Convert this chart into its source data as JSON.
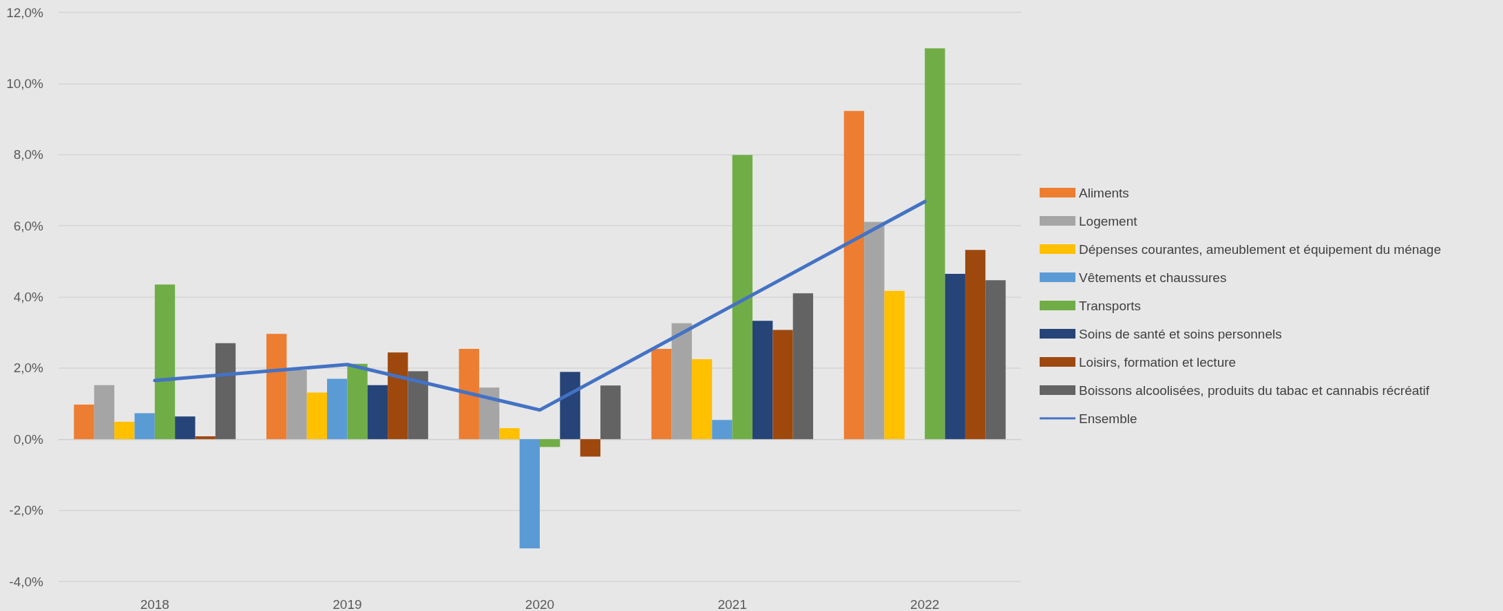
{
  "chart_data": {
    "type": "bar",
    "categories": [
      "2018",
      "2019",
      "2020",
      "2021",
      "2022"
    ],
    "series": [
      {
        "name": "Aliments",
        "color": "#ed7d31",
        "values": [
          0.97,
          2.96,
          2.54,
          2.54,
          9.23
        ]
      },
      {
        "name": "Logement",
        "color": "#a5a5a5",
        "values": [
          1.52,
          1.94,
          1.45,
          3.26,
          6.11
        ]
      },
      {
        "name": "Dépenses courantes, ameublement et équipement du ménage",
        "color": "#ffc000",
        "values": [
          0.49,
          1.31,
          0.31,
          2.25,
          4.17
        ]
      },
      {
        "name": "Vêtements et chaussures",
        "color": "#5b9bd5",
        "values": [
          0.73,
          1.7,
          -3.07,
          0.54,
          null
        ]
      },
      {
        "name": "Transports",
        "color": "#70ad47",
        "values": [
          4.35,
          2.12,
          -0.22,
          7.99,
          10.99
        ]
      },
      {
        "name": "Soins de santé et soins personnels",
        "color": "#264478",
        "values": [
          0.64,
          1.52,
          1.89,
          3.33,
          4.65
        ]
      },
      {
        "name": "Loisirs, formation et lecture",
        "color": "#9e480e",
        "values": [
          0.08,
          2.44,
          -0.49,
          3.07,
          5.32
        ]
      },
      {
        "name": "Boissons alcoolisées, produits du tabac et cannabis récréatif",
        "color": "#636363",
        "values": [
          2.7,
          1.91,
          1.51,
          4.1,
          4.47
        ]
      },
      {
        "name": "Ensemble",
        "type": "line",
        "color": "#4472c4",
        "values": [
          1.65,
          2.1,
          0.82,
          3.75,
          6.68
        ]
      }
    ],
    "ylim": [
      -4,
      12
    ],
    "yticks": [
      {
        "value": -4,
        "label": "-4,0%"
      },
      {
        "value": -2,
        "label": "-2,0%"
      },
      {
        "value": 0,
        "label": "0,0%"
      },
      {
        "value": 2,
        "label": "2,0%"
      },
      {
        "value": 4,
        "label": "4,0%"
      },
      {
        "value": 6,
        "label": "6,0%"
      },
      {
        "value": 8,
        "label": "8,0%"
      },
      {
        "value": 10,
        "label": "10,0%"
      },
      {
        "value": 12,
        "label": "12,0%"
      }
    ],
    "grid": "y",
    "legend": "right",
    "marker": "none",
    "line_style": "solid"
  }
}
